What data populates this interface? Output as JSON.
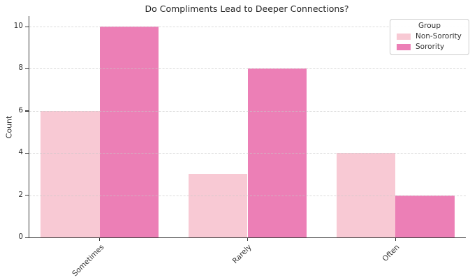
{
  "chart_data": {
    "type": "bar",
    "title": "Do Compliments Lead to Deeper Connections?",
    "xlabel": "",
    "ylabel": "Count",
    "categories": [
      "Sometimes",
      "Rarely",
      "Often"
    ],
    "series": [
      {
        "name": "Non-Sorority",
        "values": [
          6,
          3,
          4
        ],
        "color": "#f8c9d4"
      },
      {
        "name": "Sorority",
        "values": [
          10,
          8,
          2
        ],
        "color": "#ec7fb6"
      }
    ],
    "legend_title": "Group",
    "legend_position": "upper right",
    "ylim": [
      0,
      10.5
    ],
    "yticks": [
      0,
      2,
      4,
      6,
      8,
      10
    ],
    "x_tick_rotation": 45,
    "grid": "horizontal-dashed",
    "grid_color": "#dcdcdc",
    "spine_color": "#3b3b3b",
    "text_color": "#333333"
  }
}
